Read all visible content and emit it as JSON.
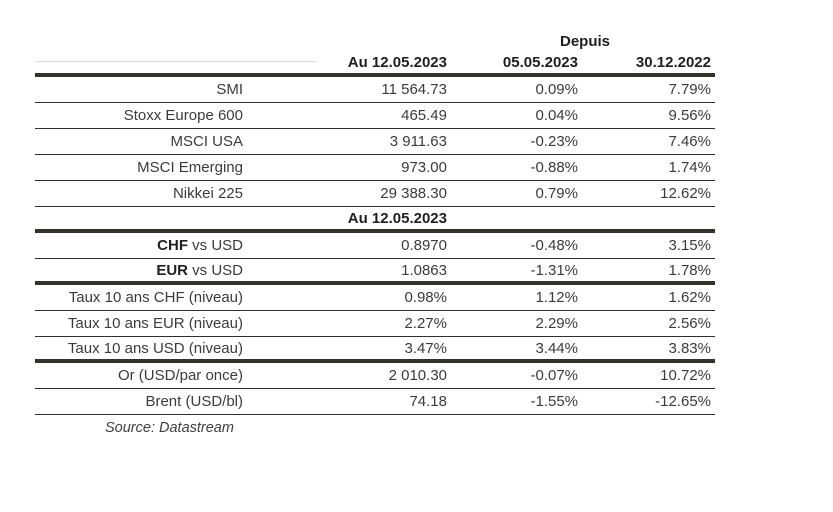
{
  "header": {
    "depuis": "Depuis",
    "columns": [
      "Au 12.05.2023",
      "05.05.2023",
      "30.12.2022"
    ]
  },
  "rows": [
    {
      "type": "data",
      "label": "SMI",
      "value": "11 564.73",
      "since_0505": "0.09%",
      "since_3012": "7.79%",
      "divider": "thin"
    },
    {
      "type": "data",
      "label": "Stoxx Europe 600",
      "value": "465.49",
      "since_0505": "0.04%",
      "since_3012": "9.56%",
      "divider": "thin"
    },
    {
      "type": "data",
      "label": "MSCI USA",
      "value": "3 911.63",
      "since_0505": "-0.23%",
      "since_3012": "7.46%",
      "divider": "thin"
    },
    {
      "type": "data",
      "label": "MSCI Emerging",
      "value": "973.00",
      "since_0505": "-0.88%",
      "since_3012": "1.74%",
      "divider": "thin"
    },
    {
      "type": "data",
      "label": "Nikkei 225",
      "value": "29 388.30",
      "since_0505": "0.79%",
      "since_3012": "12.62%",
      "divider": "thin"
    },
    {
      "type": "section",
      "label": "Au 12.05.2023",
      "divider": "thick"
    },
    {
      "type": "data",
      "label_bold": "CHF",
      "label": " vs USD",
      "value": "0.8970",
      "since_0505": "-0.48%",
      "since_3012": "3.15%",
      "divider": "thin"
    },
    {
      "type": "data",
      "label_bold": "EUR",
      "label": " vs USD",
      "value": "1.0863",
      "since_0505": "-1.31%",
      "since_3012": "1.78%",
      "divider": "thick"
    },
    {
      "type": "data",
      "label": "Taux 10 ans CHF (niveau)",
      "value": "0.98%",
      "since_0505": "1.12%",
      "since_3012": "1.62%",
      "divider": "thin"
    },
    {
      "type": "data",
      "label": "Taux 10 ans EUR (niveau)",
      "value": "2.27%",
      "since_0505": "2.29%",
      "since_3012": "2.56%",
      "divider": "thin"
    },
    {
      "type": "data",
      "label": "Taux 10 ans USD (niveau)",
      "value": "3.47%",
      "since_0505": "3.44%",
      "since_3012": "3.83%",
      "divider": "thick"
    },
    {
      "type": "data",
      "label": "Or (USD/par once)",
      "value": "2 010.30",
      "since_0505": "-0.07%",
      "since_3012": "10.72%",
      "divider": "thin"
    },
    {
      "type": "data",
      "label": "Brent (USD/bl)",
      "value": "74.18",
      "since_0505": "-1.55%",
      "since_3012": "-12.65%",
      "divider": "thin"
    }
  ],
  "source": "Source: Datastream",
  "colors": {
    "rule_thick": "#33312b",
    "rule_thin": "#2f2f2f",
    "rule_light": "#d9d9d9",
    "text": "#3b3b3b",
    "text_bold": "#1f1f1f",
    "background": "#ffffff"
  }
}
